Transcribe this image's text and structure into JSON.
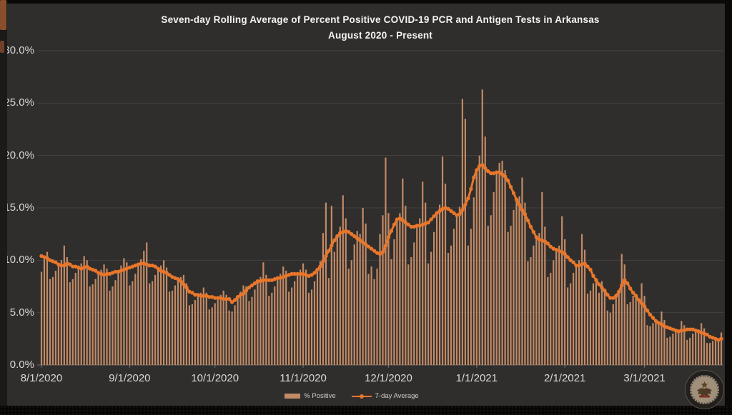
{
  "title": {
    "line1": "Seven-day Rolling Average of Percent Positive COVID-19 PCR and Antigen Tests in Arkansas",
    "line2": "August 2020 - Present"
  },
  "legend": {
    "bar_label": "% Positive",
    "line_label": "7-day Average"
  },
  "colors": {
    "slide_background": "#2f2e2c",
    "outer_background": "#0a0908",
    "bar": "#c28a66",
    "line": "#e8762b",
    "grid": "rgba(255,255,255,0.10)",
    "baseline": "rgba(255,255,255,0.28)",
    "axis_text": "#d9d8d6",
    "title_text": "#f4f3f2"
  },
  "watermark": "arkansas-state-seal",
  "chart_data": {
    "type": "bar",
    "title": "Seven-day Rolling Average of Percent Positive COVID-19 PCR and Antigen Tests in Arkansas",
    "subtitle": "August 2020 - Present",
    "xlabel": "",
    "ylabel": "",
    "ylim": [
      0,
      30
    ],
    "grid": true,
    "legend_position": "bottom",
    "start_date": "8/1/2020",
    "end_date": "3/28/2021",
    "y_ticks": [
      {
        "label": "30.0%",
        "value": 30
      },
      {
        "label": "25.0%",
        "value": 25
      },
      {
        "label": "20.0%",
        "value": 20
      },
      {
        "label": "15.0%",
        "value": 15
      },
      {
        "label": "10.0%",
        "value": 10
      },
      {
        "label": "5.0%",
        "value": 5
      },
      {
        "label": "0.0%",
        "value": 0
      }
    ],
    "x_ticks": [
      {
        "label": "8/1/2020",
        "day": 0
      },
      {
        "label": "9/1/2020",
        "day": 31
      },
      {
        "label": "10/1/2020",
        "day": 61
      },
      {
        "label": "11/1/2020",
        "day": 92
      },
      {
        "label": "12/1/2020",
        "day": 122
      },
      {
        "label": "1/1/2021",
        "day": 153
      },
      {
        "label": "2/1/2021",
        "day": 184
      },
      {
        "label": "3/1/2021",
        "day": 212
      }
    ],
    "series": [
      {
        "name": "% Positive",
        "type": "bar",
        "color": "#c28a66",
        "values": [
          8.9,
          10.1,
          10.8,
          8.2,
          8.4,
          9.0,
          9.7,
          10.0,
          11.4,
          10.3,
          7.9,
          8.2,
          8.8,
          9.5,
          9.7,
          10.4,
          10.0,
          7.5,
          7.7,
          8.2,
          8.8,
          9.1,
          9.6,
          9.2,
          7.1,
          7.5,
          8.1,
          8.9,
          9.5,
          10.2,
          9.8,
          7.6,
          8.0,
          8.7,
          9.6,
          10.1,
          10.9,
          11.7,
          7.8,
          8.0,
          8.6,
          9.2,
          9.5,
          10.0,
          9.3,
          7.0,
          7.1,
          7.6,
          8.2,
          8.4,
          8.6,
          7.8,
          5.7,
          5.8,
          6.2,
          6.6,
          6.9,
          7.4,
          6.9,
          5.3,
          5.5,
          5.9,
          6.4,
          6.7,
          7.1,
          6.7,
          5.2,
          5.1,
          5.7,
          6.5,
          7.0,
          7.6,
          7.5,
          6.1,
          6.5,
          7.2,
          8.0,
          8.4,
          9.8,
          8.6,
          6.6,
          6.9,
          7.5,
          8.3,
          8.7,
          9.4,
          9.0,
          7.0,
          7.4,
          8.0,
          8.7,
          9.1,
          9.7,
          9.1,
          6.9,
          7.2,
          8.0,
          8.9,
          9.9,
          12.6,
          15.5,
          8.3,
          15.2,
          10.8,
          12.4,
          13.2,
          16.2,
          14.0,
          9.2,
          10.0,
          11.5,
          12.8,
          12.5,
          15.0,
          13.5,
          8.7,
          9.4,
          8.2,
          9.2,
          12.5,
          14.3,
          19.8,
          14.5,
          10.1,
          12.0,
          13.9,
          14.5,
          17.8,
          15.2,
          9.6,
          10.3,
          11.7,
          13.3,
          14.0,
          17.5,
          15.5,
          9.7,
          10.8,
          12.7,
          14.4,
          15.3,
          19.9,
          17.3,
          10.7,
          11.4,
          13.0,
          14.3,
          15.1,
          25.4,
          23.5,
          11.4,
          13.0,
          16.0,
          18.5,
          20.0,
          26.3,
          21.8,
          13.3,
          14.3,
          16.5,
          18.4,
          19.3,
          19.5,
          18.6,
          12.7,
          13.3,
          14.8,
          15.8,
          16.1,
          17.9,
          15.5,
          9.9,
          10.3,
          11.4,
          12.2,
          12.6,
          16.5,
          13.2,
          8.4,
          8.8,
          10.0,
          11.0,
          11.4,
          14.2,
          12.0,
          7.4,
          7.8,
          8.8,
          9.5,
          10.0,
          12.5,
          11.0,
          6.8,
          7.1,
          7.8,
          8.3,
          6.9,
          8.0,
          7.3,
          5.2,
          5.0,
          5.8,
          6.5,
          6.9,
          10.6,
          9.6,
          5.8,
          6.0,
          6.6,
          6.8,
          6.1,
          7.8,
          6.6,
          3.8,
          3.7,
          4.0,
          4.2,
          4.2,
          5.1,
          4.3,
          2.6,
          2.7,
          3.0,
          3.3,
          3.4,
          4.2,
          3.8,
          2.4,
          2.6,
          3.0,
          3.3,
          3.4,
          4.0,
          3.5,
          2.1,
          2.1,
          2.3,
          2.5,
          2.5,
          3.1
        ]
      },
      {
        "name": "7-day Average",
        "type": "line",
        "color": "#e8762b",
        "values": [
          10.4,
          10.3,
          10.2,
          10.0,
          9.9,
          9.8,
          9.6,
          9.5,
          9.5,
          9.7,
          9.6,
          9.4,
          9.4,
          9.3,
          9.2,
          9.3,
          9.4,
          9.2,
          9.1,
          9.0,
          8.8,
          8.7,
          8.6,
          8.7,
          8.7,
          8.8,
          8.9,
          8.9,
          9.0,
          9.1,
          9.2,
          9.3,
          9.4,
          9.5,
          9.6,
          9.7,
          9.7,
          9.6,
          9.5,
          9.5,
          9.4,
          9.2,
          9.0,
          8.9,
          8.8,
          8.6,
          8.4,
          8.3,
          8.2,
          8.0,
          7.7,
          7.4,
          7.0,
          6.9,
          6.7,
          6.7,
          6.6,
          6.6,
          6.6,
          6.5,
          6.5,
          6.4,
          6.4,
          6.4,
          6.3,
          6.3,
          6.3,
          6.0,
          6.2,
          6.5,
          6.7,
          6.8,
          7.1,
          7.4,
          7.6,
          7.8,
          8.0,
          8.0,
          8.1,
          8.1,
          8.1,
          8.1,
          8.2,
          8.3,
          8.3,
          8.4,
          8.5,
          8.6,
          8.7,
          8.7,
          8.7,
          8.7,
          8.7,
          8.6,
          8.5,
          8.6,
          8.8,
          9.1,
          9.4,
          9.9,
          10.4,
          10.9,
          11.4,
          11.9,
          12.3,
          12.6,
          12.7,
          12.8,
          12.7,
          12.5,
          12.3,
          12.1,
          11.9,
          11.7,
          11.5,
          11.3,
          11.1,
          10.9,
          10.7,
          10.6,
          10.8,
          11.4,
          12.2,
          12.8,
          13.4,
          13.9,
          14.0,
          13.8,
          13.6,
          13.4,
          13.2,
          13.2,
          13.3,
          13.3,
          13.4,
          13.5,
          13.6,
          13.9,
          14.2,
          14.5,
          14.7,
          14.9,
          15.0,
          14.9,
          14.7,
          14.5,
          14.3,
          14.4,
          14.8,
          15.3,
          15.9,
          16.8,
          17.9,
          18.6,
          19.0,
          19.1,
          18.8,
          18.5,
          18.3,
          18.3,
          18.4,
          18.4,
          18.2,
          18.0,
          17.6,
          17.0,
          16.4,
          15.8,
          15.3,
          14.8,
          14.4,
          13.8,
          13.2,
          12.7,
          12.2,
          12.0,
          11.9,
          11.8,
          11.6,
          11.3,
          11.1,
          11.0,
          10.9,
          10.8,
          10.6,
          10.3,
          10.0,
          9.8,
          9.5,
          9.5,
          9.6,
          9.7,
          9.4,
          9.1,
          8.5,
          8.1,
          7.7,
          7.4,
          7.1,
          6.7,
          6.4,
          6.4,
          6.6,
          7.0,
          7.6,
          8.1,
          7.8,
          7.3,
          6.9,
          6.6,
          6.2,
          5.9,
          5.6,
          5.2,
          4.8,
          4.5,
          4.2,
          4.0,
          3.9,
          3.7,
          3.6,
          3.5,
          3.4,
          3.3,
          3.2,
          3.3,
          3.3,
          3.4,
          3.4,
          3.4,
          3.3,
          3.2,
          3.1,
          3.0,
          2.9,
          2.7,
          2.6,
          2.5,
          2.4,
          2.5
        ]
      }
    ]
  }
}
